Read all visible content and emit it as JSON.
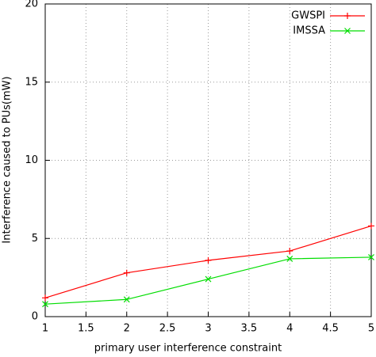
{
  "chart_data": {
    "type": "line",
    "x_label": "primary user interference constraint",
    "y_label": "Interference caused to PUs(mW)",
    "x": [
      1,
      2,
      3,
      4,
      5
    ],
    "series": [
      {
        "name": "GWSPI",
        "color": "#ff0000",
        "marker": "plus",
        "values": [
          1.2,
          2.8,
          3.6,
          4.2,
          5.8
        ]
      },
      {
        "name": "IMSSA",
        "color": "#00dd00",
        "marker": "cross",
        "values": [
          0.8,
          1.1,
          2.4,
          3.7,
          3.8
        ]
      }
    ],
    "xlim": [
      1,
      5
    ],
    "xticks": [
      1,
      1.5,
      2,
      2.5,
      3,
      3.5,
      4,
      4.5,
      5
    ],
    "ylim": [
      0,
      20
    ],
    "yticks": [
      0,
      5,
      10,
      15,
      20
    ],
    "grid": true,
    "legend": "top-right"
  }
}
